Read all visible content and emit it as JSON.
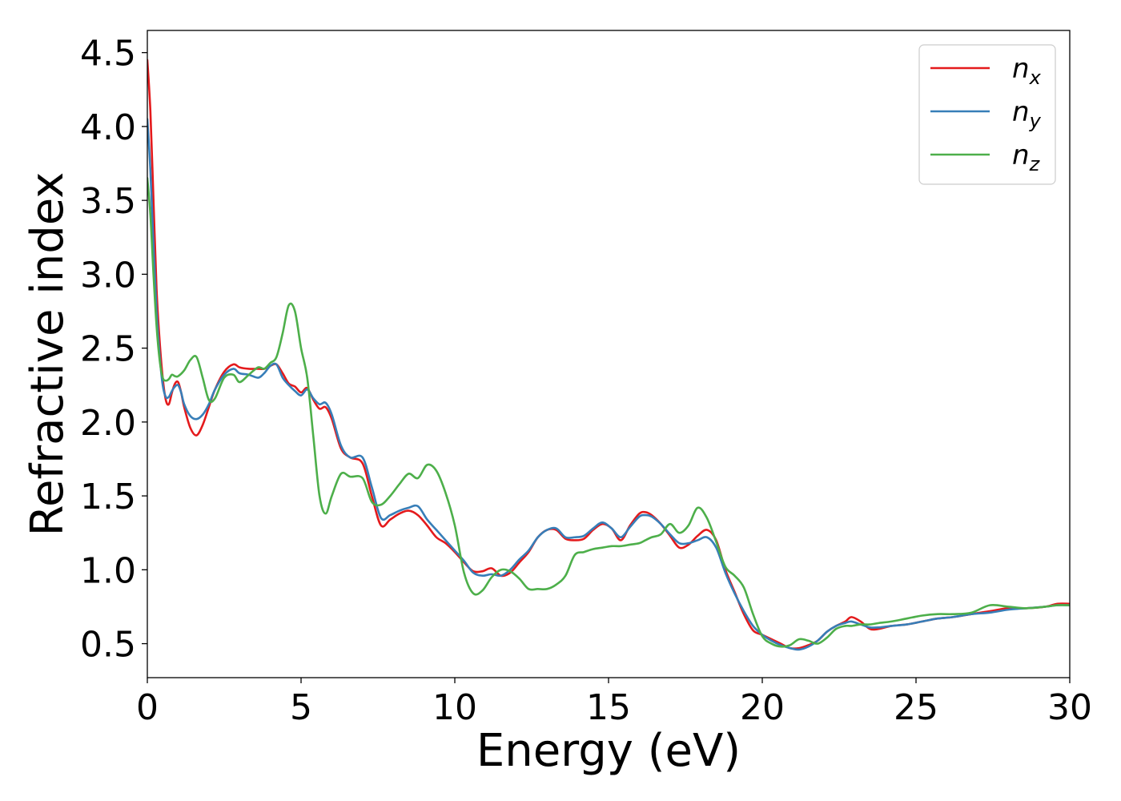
{
  "chart_data": {
    "type": "line",
    "title": "",
    "xlabel": "Energy (eV)",
    "ylabel": "Refractive index",
    "xlim": [
      0,
      30
    ],
    "ylim": [
      0.27,
      4.65
    ],
    "xticks": [
      0,
      5,
      10,
      15,
      20,
      25,
      30
    ],
    "xtick_labels": [
      "0",
      "5",
      "10",
      "15",
      "20",
      "25",
      "30"
    ],
    "yticks": [
      0.5,
      1.0,
      1.5,
      2.0,
      2.5,
      3.0,
      3.5,
      4.0,
      4.5
    ],
    "ytick_labels": [
      "0.5",
      "1.0",
      "1.5",
      "2.0",
      "2.5",
      "3.0",
      "3.5",
      "4.0",
      "4.5"
    ],
    "grid": false,
    "legend_position": "top-right",
    "series": [
      {
        "name": "n",
        "subscript": "x",
        "color": "#e41a1c",
        "x": [
          0,
          0.1,
          0.2,
          0.3,
          0.4,
          0.5,
          0.6,
          0.7,
          0.8,
          0.9,
          1.0,
          1.1,
          1.2,
          1.4,
          1.6,
          1.8,
          2.0,
          2.2,
          2.5,
          2.8,
          3.0,
          3.3,
          3.6,
          3.8,
          4.0,
          4.2,
          4.4,
          4.6,
          4.8,
          5.0,
          5.2,
          5.4,
          5.6,
          5.8,
          6.0,
          6.3,
          6.6,
          7.0,
          7.3,
          7.6,
          7.9,
          8.2,
          8.5,
          8.8,
          9.1,
          9.4,
          9.7,
          10.0,
          10.3,
          10.6,
          10.9,
          11.2,
          11.5,
          11.8,
          12.1,
          12.4,
          12.7,
          13.0,
          13.3,
          13.6,
          13.9,
          14.2,
          14.5,
          14.8,
          15.1,
          15.4,
          15.7,
          16.0,
          16.2,
          16.4,
          16.7,
          17.0,
          17.3,
          17.6,
          17.9,
          18.2,
          18.5,
          18.8,
          19.1,
          19.4,
          19.7,
          20.0,
          20.3,
          20.6,
          20.9,
          21.2,
          21.5,
          21.8,
          22.1,
          22.4,
          22.7,
          22.9,
          23.2,
          23.5,
          23.8,
          24.2,
          24.7,
          25.2,
          25.7,
          26.2,
          26.8,
          27.4,
          28.0,
          28.6,
          29.2,
          29.6,
          30.0
        ],
        "y": [
          4.45,
          4.1,
          3.5,
          2.9,
          2.55,
          2.3,
          2.15,
          2.12,
          2.2,
          2.26,
          2.27,
          2.2,
          2.1,
          1.96,
          1.91,
          1.98,
          2.1,
          2.22,
          2.34,
          2.39,
          2.37,
          2.36,
          2.36,
          2.36,
          2.38,
          2.39,
          2.33,
          2.26,
          2.24,
          2.2,
          2.23,
          2.15,
          2.09,
          2.1,
          2.02,
          1.82,
          1.76,
          1.72,
          1.5,
          1.3,
          1.34,
          1.38,
          1.4,
          1.37,
          1.3,
          1.22,
          1.18,
          1.12,
          1.05,
          0.99,
          0.99,
          1.01,
          0.96,
          0.98,
          1.05,
          1.12,
          1.22,
          1.27,
          1.27,
          1.21,
          1.2,
          1.21,
          1.27,
          1.31,
          1.28,
          1.2,
          1.3,
          1.38,
          1.39,
          1.37,
          1.31,
          1.23,
          1.15,
          1.17,
          1.23,
          1.27,
          1.2,
          1.0,
          0.85,
          0.7,
          0.59,
          0.56,
          0.53,
          0.5,
          0.47,
          0.47,
          0.49,
          0.52,
          0.58,
          0.62,
          0.65,
          0.68,
          0.65,
          0.6,
          0.6,
          0.62,
          0.63,
          0.65,
          0.67,
          0.68,
          0.7,
          0.72,
          0.74,
          0.74,
          0.75,
          0.77,
          0.77
        ]
      },
      {
        "name": "n",
        "subscript": "y",
        "color": "#377eb8",
        "x": [
          0,
          0.1,
          0.2,
          0.3,
          0.4,
          0.5,
          0.6,
          0.7,
          0.8,
          0.9,
          1.0,
          1.1,
          1.2,
          1.4,
          1.6,
          1.8,
          2.0,
          2.2,
          2.5,
          2.8,
          3.0,
          3.3,
          3.6,
          3.8,
          4.0,
          4.2,
          4.4,
          4.6,
          4.8,
          5.0,
          5.2,
          5.4,
          5.6,
          5.8,
          6.0,
          6.3,
          6.6,
          7.0,
          7.3,
          7.6,
          7.9,
          8.2,
          8.5,
          8.8,
          9.1,
          9.4,
          9.7,
          10.0,
          10.3,
          10.6,
          10.9,
          11.2,
          11.5,
          11.8,
          12.1,
          12.4,
          12.7,
          13.0,
          13.3,
          13.6,
          13.9,
          14.2,
          14.5,
          14.8,
          15.1,
          15.4,
          15.7,
          16.0,
          16.2,
          16.4,
          16.7,
          17.0,
          17.3,
          17.6,
          17.9,
          18.2,
          18.5,
          18.8,
          19.1,
          19.4,
          19.7,
          20.0,
          20.3,
          20.6,
          20.9,
          21.2,
          21.5,
          21.8,
          22.1,
          22.4,
          22.7,
          22.9,
          23.2,
          23.5,
          23.8,
          24.2,
          24.7,
          25.2,
          25.7,
          26.2,
          26.8,
          27.4,
          28.0,
          28.6,
          29.2,
          29.6,
          30.0
        ],
        "y": [
          4.05,
          3.7,
          3.2,
          2.75,
          2.45,
          2.25,
          2.17,
          2.17,
          2.21,
          2.24,
          2.25,
          2.2,
          2.12,
          2.04,
          2.02,
          2.05,
          2.12,
          2.22,
          2.32,
          2.36,
          2.33,
          2.32,
          2.3,
          2.33,
          2.38,
          2.39,
          2.3,
          2.25,
          2.21,
          2.18,
          2.22,
          2.16,
          2.12,
          2.13,
          2.05,
          1.84,
          1.76,
          1.76,
          1.56,
          1.35,
          1.37,
          1.4,
          1.42,
          1.43,
          1.34,
          1.27,
          1.2,
          1.13,
          1.06,
          0.98,
          0.96,
          0.97,
          0.96,
          1.0,
          1.07,
          1.13,
          1.22,
          1.27,
          1.28,
          1.22,
          1.22,
          1.23,
          1.28,
          1.32,
          1.28,
          1.22,
          1.29,
          1.36,
          1.37,
          1.36,
          1.31,
          1.24,
          1.18,
          1.18,
          1.2,
          1.22,
          1.15,
          0.98,
          0.84,
          0.72,
          0.62,
          0.56,
          0.52,
          0.49,
          0.47,
          0.46,
          0.48,
          0.52,
          0.58,
          0.62,
          0.64,
          0.65,
          0.63,
          0.61,
          0.61,
          0.62,
          0.63,
          0.65,
          0.67,
          0.68,
          0.7,
          0.71,
          0.73,
          0.74,
          0.75,
          0.76,
          0.76
        ]
      },
      {
        "name": "n",
        "subscript": "z",
        "color": "#4daf4a",
        "x": [
          0,
          0.1,
          0.2,
          0.3,
          0.4,
          0.5,
          0.6,
          0.7,
          0.8,
          0.9,
          1.0,
          1.2,
          1.4,
          1.6,
          1.8,
          2.0,
          2.2,
          2.5,
          2.8,
          3.0,
          3.3,
          3.6,
          3.8,
          4.0,
          4.2,
          4.4,
          4.6,
          4.8,
          5.0,
          5.2,
          5.4,
          5.6,
          5.8,
          6.0,
          6.3,
          6.6,
          7.0,
          7.3,
          7.6,
          7.9,
          8.2,
          8.5,
          8.8,
          9.1,
          9.4,
          9.7,
          10.0,
          10.3,
          10.6,
          10.9,
          11.2,
          11.5,
          11.8,
          12.1,
          12.4,
          12.7,
          13.0,
          13.3,
          13.6,
          13.9,
          14.2,
          14.5,
          14.8,
          15.1,
          15.4,
          15.7,
          16.0,
          16.2,
          16.4,
          16.7,
          17.0,
          17.3,
          17.6,
          17.9,
          18.2,
          18.5,
          18.8,
          19.1,
          19.4,
          19.7,
          20.0,
          20.3,
          20.6,
          20.9,
          21.2,
          21.5,
          21.8,
          22.1,
          22.4,
          22.7,
          22.9,
          23.2,
          23.5,
          23.8,
          24.2,
          24.7,
          25.2,
          25.7,
          26.2,
          26.8,
          27.4,
          28.0,
          28.6,
          29.2,
          29.6,
          30.0
        ],
        "y": [
          3.65,
          3.4,
          3.0,
          2.65,
          2.42,
          2.3,
          2.28,
          2.29,
          2.32,
          2.31,
          2.31,
          2.35,
          2.42,
          2.44,
          2.3,
          2.15,
          2.16,
          2.3,
          2.32,
          2.27,
          2.32,
          2.37,
          2.36,
          2.4,
          2.44,
          2.6,
          2.79,
          2.75,
          2.5,
          2.3,
          1.9,
          1.5,
          1.38,
          1.5,
          1.65,
          1.63,
          1.62,
          1.46,
          1.44,
          1.5,
          1.58,
          1.65,
          1.62,
          1.71,
          1.67,
          1.52,
          1.3,
          0.98,
          0.84,
          0.86,
          0.95,
          1.0,
          0.99,
          0.94,
          0.87,
          0.87,
          0.87,
          0.9,
          0.96,
          1.1,
          1.12,
          1.14,
          1.15,
          1.16,
          1.16,
          1.17,
          1.18,
          1.2,
          1.22,
          1.24,
          1.31,
          1.25,
          1.3,
          1.42,
          1.35,
          1.19,
          1.02,
          0.96,
          0.88,
          0.7,
          0.55,
          0.5,
          0.48,
          0.49,
          0.53,
          0.52,
          0.5,
          0.54,
          0.6,
          0.62,
          0.62,
          0.63,
          0.63,
          0.64,
          0.65,
          0.67,
          0.69,
          0.7,
          0.7,
          0.71,
          0.76,
          0.75,
          0.74,
          0.75,
          0.76,
          0.76
        ]
      }
    ]
  }
}
